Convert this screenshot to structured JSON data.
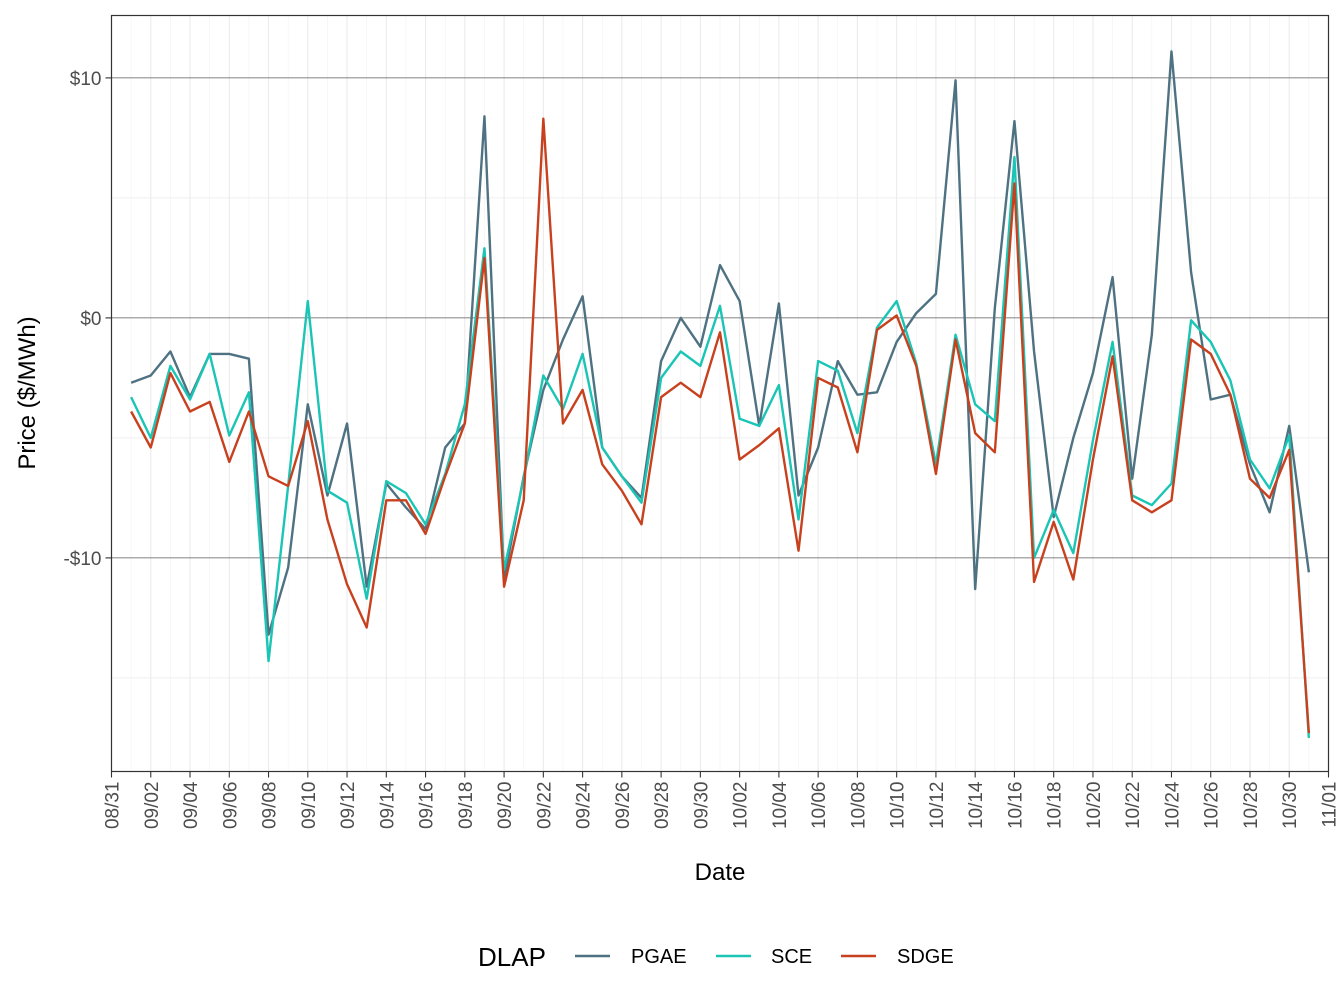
{
  "chart_data": {
    "type": "line",
    "xlabel": "Date",
    "ylabel": "Price ($/MWh)",
    "x_start": "08/31",
    "x_ticks": [
      "08/31",
      "09/02",
      "09/04",
      "09/06",
      "09/08",
      "09/10",
      "09/12",
      "09/14",
      "09/16",
      "09/18",
      "09/20",
      "09/22",
      "09/24",
      "09/26",
      "09/28",
      "09/30",
      "10/02",
      "10/04",
      "10/06",
      "10/08",
      "10/10",
      "10/12",
      "10/14",
      "10/16",
      "10/18",
      "10/20",
      "10/22",
      "10/24",
      "10/26",
      "10/28",
      "10/30",
      "11/01"
    ],
    "y_ticks": [
      {
        "value": 10,
        "label": "$10"
      },
      {
        "value": 0,
        "label": "$0"
      },
      {
        "value": -10,
        "label": "-$10"
      }
    ],
    "xlim": [
      "08/31",
      "11/01"
    ],
    "ylim": [
      -18.9,
      12.6
    ],
    "grid": true,
    "legend": {
      "title": "DLAP",
      "position": "bottom",
      "items": [
        {
          "name": "PGAE",
          "color": "#4e7282"
        },
        {
          "name": "SCE",
          "color": "#1ac5b5"
        },
        {
          "name": "SDGE",
          "color": "#c8411e"
        }
      ]
    },
    "x": [
      "09/01",
      "09/02",
      "09/03",
      "09/04",
      "09/05",
      "09/06",
      "09/07",
      "09/08",
      "09/09",
      "09/10",
      "09/11",
      "09/12",
      "09/13",
      "09/14",
      "09/15",
      "09/16",
      "09/17",
      "09/18",
      "09/19",
      "09/20",
      "09/21",
      "09/22",
      "09/23",
      "09/24",
      "09/25",
      "09/26",
      "09/27",
      "09/28",
      "09/29",
      "09/30",
      "10/01",
      "10/02",
      "10/03",
      "10/04",
      "10/05",
      "10/06",
      "10/07",
      "10/08",
      "10/09",
      "10/10",
      "10/11",
      "10/12",
      "10/13",
      "10/14",
      "10/15",
      "10/16",
      "10/17",
      "10/18",
      "10/19",
      "10/20",
      "10/21",
      "10/22",
      "10/23",
      "10/24",
      "10/25",
      "10/26",
      "10/27",
      "10/28",
      "10/29",
      "10/30",
      "10/31"
    ],
    "series": [
      {
        "name": "PGAE",
        "color": "#4e7282",
        "values": [
          -2.7,
          -2.4,
          -1.4,
          -3.3,
          -1.5,
          -1.5,
          -1.7,
          -13.2,
          -10.4,
          -3.6,
          -7.4,
          -4.4,
          -11.2,
          -6.9,
          -7.9,
          -8.8,
          -5.4,
          -4.4,
          8.4,
          -10.9,
          -6.6,
          -3.0,
          -0.9,
          0.9,
          -5.4,
          -6.6,
          -7.5,
          -1.8,
          0.0,
          -1.2,
          2.2,
          0.7,
          -4.5,
          0.6,
          -7.4,
          -5.4,
          -1.8,
          -3.2,
          -3.1,
          -1.0,
          0.2,
          1.0,
          9.9,
          -11.3,
          0.4,
          8.2,
          -1.4,
          -8.3,
          -5.0,
          -2.3,
          1.7,
          -6.7,
          -0.7,
          11.1,
          1.9,
          -3.4,
          -3.2,
          -6.1,
          -8.1,
          -4.5,
          -10.6
        ]
      },
      {
        "name": "SCE",
        "color": "#1ac5b5",
        "values": [
          -3.3,
          -5.0,
          -2.0,
          -3.4,
          -1.5,
          -4.9,
          -3.1,
          -14.3,
          -7.0,
          0.7,
          -7.2,
          -7.7,
          -11.7,
          -6.8,
          -7.3,
          -8.6,
          -6.5,
          -3.6,
          2.9,
          -10.5,
          -6.7,
          -2.4,
          -3.8,
          -1.5,
          -5.4,
          -6.6,
          -7.7,
          -2.5,
          -1.4,
          -2.0,
          0.5,
          -4.2,
          -4.5,
          -2.8,
          -8.4,
          -1.8,
          -2.2,
          -4.8,
          -0.4,
          0.7,
          -1.9,
          -6.1,
          -0.7,
          -3.6,
          -4.3,
          6.7,
          -10.0,
          -8.0,
          -9.8,
          -5.1,
          -1.0,
          -7.4,
          -7.8,
          -6.9,
          -0.1,
          -1.0,
          -2.6,
          -5.9,
          -7.1,
          -4.9,
          -17.5
        ]
      },
      {
        "name": "SDGE",
        "color": "#c8411e",
        "values": [
          -3.9,
          -5.4,
          -2.3,
          -3.9,
          -3.5,
          -6.0,
          -3.9,
          -6.6,
          -7.0,
          -4.3,
          -8.4,
          -11.1,
          -12.9,
          -7.6,
          -7.6,
          -9.0,
          -6.6,
          -4.4,
          2.5,
          -11.2,
          -7.6,
          8.3,
          -4.4,
          -3.0,
          -6.1,
          -7.2,
          -8.6,
          -3.3,
          -2.7,
          -3.3,
          -0.6,
          -5.9,
          -5.3,
          -4.6,
          -9.7,
          -2.5,
          -2.9,
          -5.6,
          -0.5,
          0.1,
          -2.0,
          -6.5,
          -0.9,
          -4.8,
          -5.6,
          5.6,
          -11.0,
          -8.5,
          -10.9,
          -5.9,
          -1.6,
          -7.6,
          -8.1,
          -7.6,
          -0.9,
          -1.5,
          -3.2,
          -6.7,
          -7.5,
          -5.5,
          -17.3
        ]
      }
    ]
  }
}
